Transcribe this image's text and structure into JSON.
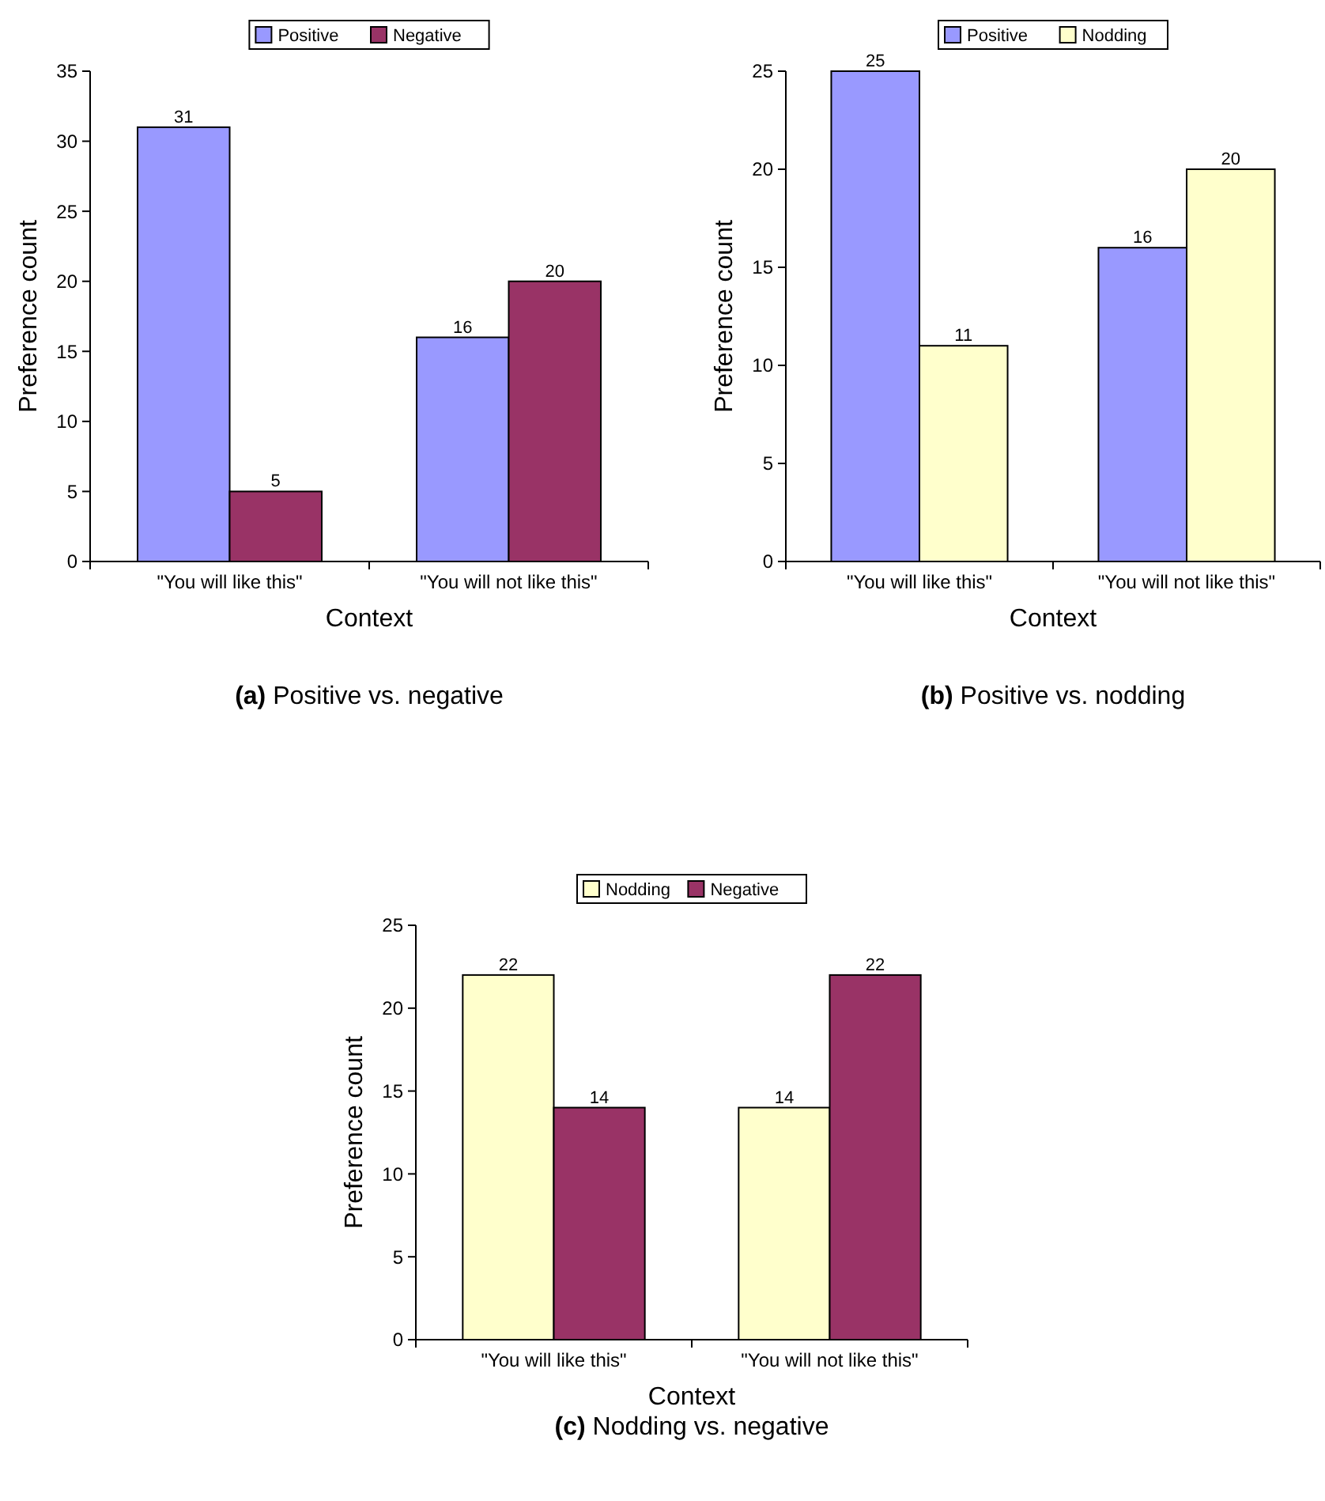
{
  "chart_data": [
    {
      "type": "bar",
      "title": "(a) Positive vs. negative",
      "xlabel": "Context",
      "ylabel": "Preference count",
      "categories": [
        "\"You will like this\"",
        "\"You will not like this\""
      ],
      "series": [
        {
          "name": "Positive",
          "color": "#9999ff",
          "values": [
            31,
            16
          ]
        },
        {
          "name": "Negative",
          "color": "#993366",
          "values": [
            5,
            20
          ]
        }
      ],
      "ylim": [
        0,
        35
      ],
      "yticks": [
        0,
        5,
        10,
        15,
        20,
        25,
        30,
        35
      ],
      "data_labels": true,
      "legend": "top",
      "grid": false
    },
    {
      "type": "bar",
      "title": "(b) Positive vs. nodding",
      "xlabel": "Context",
      "ylabel": "Preference count",
      "categories": [
        "\"You will like this\"",
        "\"You will not like this\""
      ],
      "series": [
        {
          "name": "Positive",
          "color": "#9999ff",
          "values": [
            25,
            16
          ]
        },
        {
          "name": "Nodding",
          "color": "#ffffcc",
          "values": [
            11,
            20
          ]
        }
      ],
      "ylim": [
        0,
        25
      ],
      "yticks": [
        0,
        5,
        10,
        15,
        20,
        25
      ],
      "data_labels": true,
      "legend": "top",
      "grid": false
    },
    {
      "type": "bar",
      "title": "(c) Nodding vs. negative",
      "xlabel": "Context",
      "ylabel": "Preference count",
      "categories": [
        "\"You will like this\"",
        "\"You will not like this\""
      ],
      "series": [
        {
          "name": "Nodding",
          "color": "#ffffcc",
          "values": [
            22,
            14
          ]
        },
        {
          "name": "Negative",
          "color": "#993366",
          "values": [
            14,
            22
          ]
        }
      ],
      "ylim": [
        0,
        25
      ],
      "yticks": [
        0,
        5,
        10,
        15,
        20,
        25
      ],
      "data_labels": true,
      "legend": "top",
      "grid": false
    }
  ]
}
